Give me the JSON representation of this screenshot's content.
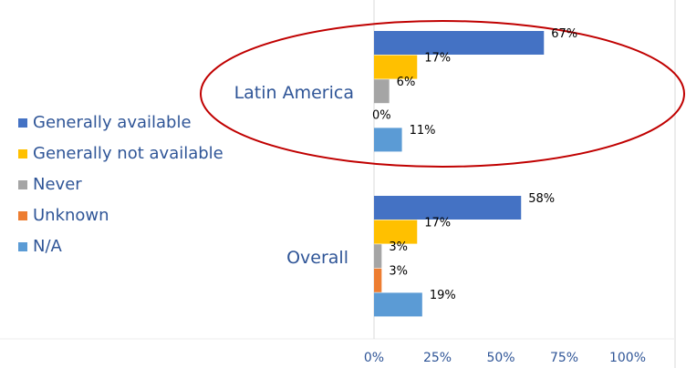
{
  "chart_data": {
    "type": "bar",
    "orientation": "horizontal",
    "categories": [
      "Latin America",
      "Overall"
    ],
    "series": [
      {
        "name": "Generally available",
        "color": "#4472c4",
        "values": [
          67,
          58
        ],
        "value_labels": [
          "67%",
          "58%"
        ]
      },
      {
        "name": "Generally not available",
        "color": "#ffc000",
        "values": [
          17,
          17
        ],
        "value_labels": [
          "17%",
          "17%"
        ]
      },
      {
        "name": "Never",
        "color": "#a5a5a5",
        "values": [
          6,
          3
        ],
        "value_labels": [
          "6%",
          "3%"
        ]
      },
      {
        "name": "Unknown",
        "color": "#ed7d31",
        "values": [
          0,
          3
        ],
        "value_labels": [
          "0%",
          "3%"
        ]
      },
      {
        "name": "N/A",
        "color": "#5b9bd5",
        "values": [
          11,
          19
        ],
        "value_labels": [
          "11%",
          "19%"
        ]
      }
    ],
    "xlim": [
      0,
      100
    ],
    "xticks": [
      {
        "value": 0,
        "label": "0%"
      },
      {
        "value": 25,
        "label": "25%"
      },
      {
        "value": 50,
        "label": "50%"
      },
      {
        "value": 75,
        "label": "75%"
      },
      {
        "value": 100,
        "label": "100%"
      }
    ],
    "legend": "left"
  }
}
